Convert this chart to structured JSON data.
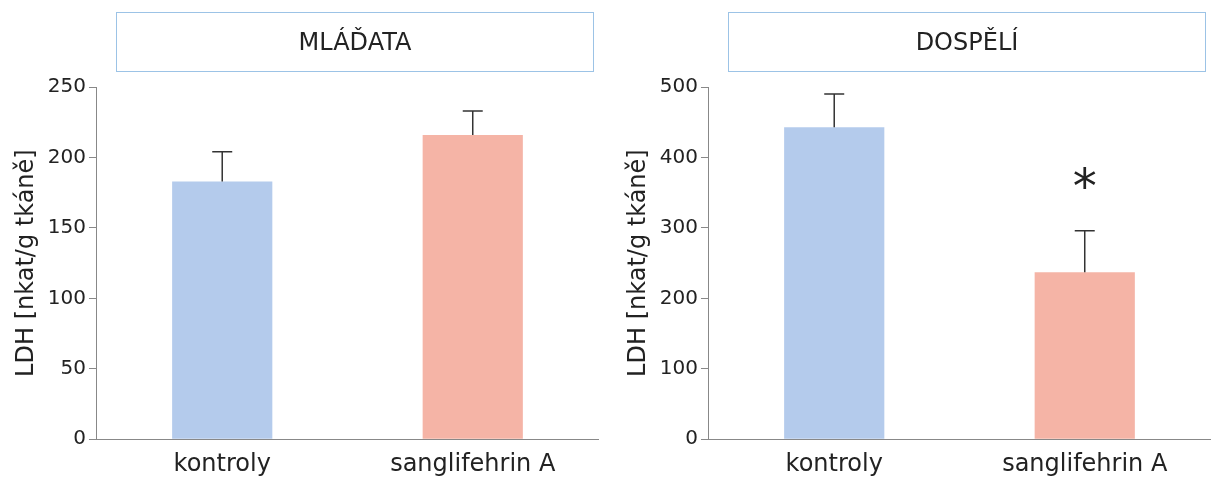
{
  "chart_data": [
    {
      "type": "bar",
      "title": "MLÁĎATA",
      "ylabel": "LDH [nkat/g tkáně]",
      "categories": [
        "kontroly",
        "sanglifehrin A"
      ],
      "values": [
        183,
        216
      ],
      "colors": [
        "#b4cbec",
        "#f5b4a6"
      ],
      "errors": [
        [
          183,
          204
        ],
        [
          216,
          233
        ]
      ],
      "ylim": [
        0,
        250
      ],
      "yticks": [
        0,
        50,
        100,
        150,
        200,
        250
      ],
      "grid": false,
      "legend": false
    },
    {
      "type": "bar",
      "title": "DOSPĚLÍ",
      "ylabel": "LDH [nkat/g tkáně]",
      "categories": [
        "kontroly",
        "sanglifehrin A"
      ],
      "values": [
        443,
        237
      ],
      "colors": [
        "#b4cbec",
        "#f5b4a6"
      ],
      "errors": [
        [
          443,
          490
        ],
        [
          237,
          296
        ]
      ],
      "ylim": [
        0,
        500
      ],
      "yticks": [
        0,
        100,
        200,
        300,
        400,
        500
      ],
      "grid": false,
      "legend": false,
      "annotations": [
        "*"
      ]
    }
  ]
}
